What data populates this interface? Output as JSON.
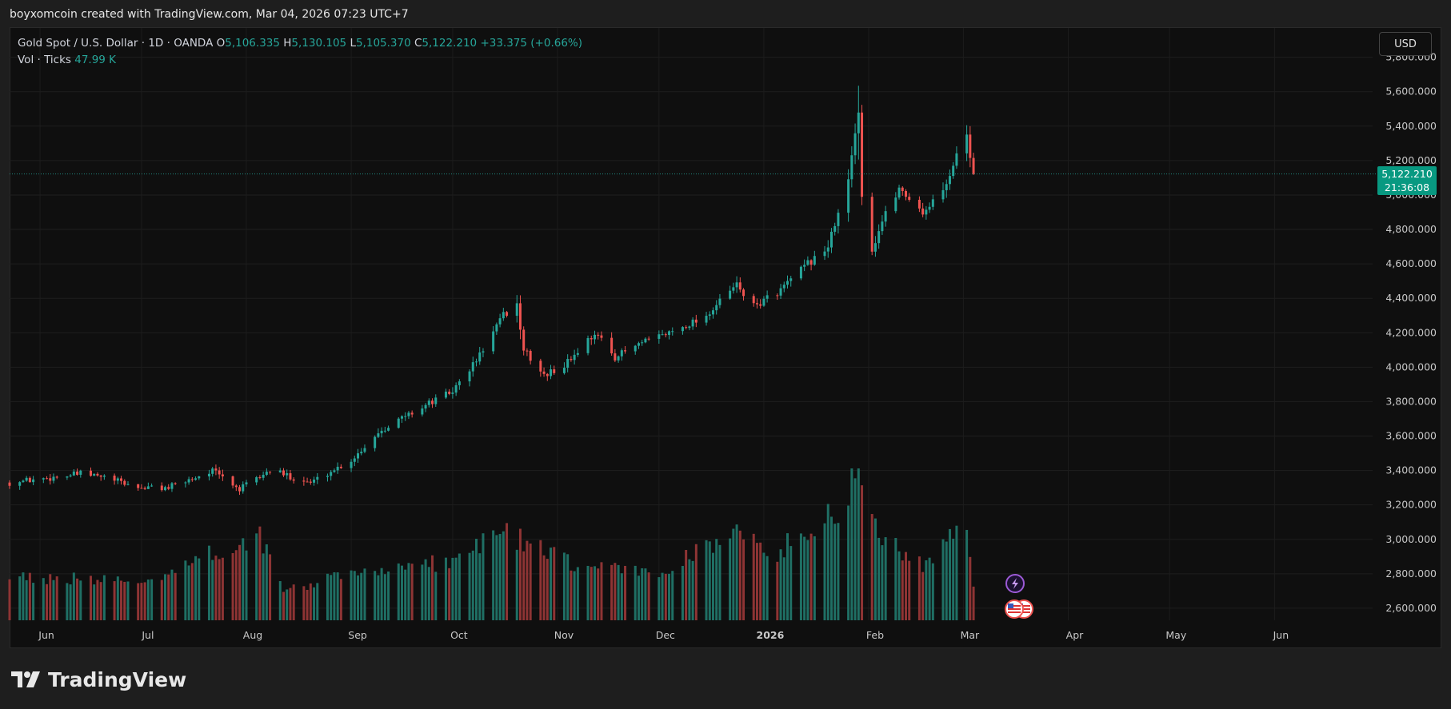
{
  "header": {
    "created_by": "boyxomcoin created with TradingView.com, Mar 04, 2026 07:23 UTC+7"
  },
  "legend": {
    "symbol": "Gold Spot / U.S. Dollar · 1D · OANDA",
    "o_label": "O",
    "o_value": "5,106.335",
    "h_label": "H",
    "h_value": "5,130.105",
    "l_label": "L",
    "l_value": "5,105.370",
    "c_label": "C",
    "c_value": "5,122.210",
    "change": "+33.375 (+0.66%)",
    "vol_label": "Vol · Ticks",
    "vol_value": "47.99 K"
  },
  "currency_button": "USD",
  "price_tag": {
    "price": "5,122.210",
    "countdown": "21:36:08"
  },
  "brand": {
    "name": "TradingView",
    "logo_icon": "tradingview-logo-icon"
  },
  "colors": {
    "up": "#26a69a",
    "down": "#ef5350",
    "vol_up": "#1f6f64",
    "vol_down": "#8e3434",
    "tag": "#089981"
  },
  "icons": [
    "lightning-event-icon",
    "us-flag-event-icon",
    "us-flag-event-icon"
  ],
  "chart_data": {
    "type": "candlestick",
    "title": "",
    "y_axis": {
      "ticks": [
        2600,
        2800,
        3000,
        3200,
        3400,
        3600,
        3800,
        4000,
        4200,
        4400,
        4600,
        4800,
        5000,
        5200,
        5400,
        5600,
        5800
      ],
      "tick_labels": [
        "2,600.000",
        "2,800.000",
        "3,000.000",
        "3,200.000",
        "3,400.000",
        "3,600.000",
        "3,800.000",
        "4,000.000",
        "4,200.000",
        "4,400.000",
        "4,600.000",
        "4,800.000",
        "5,000.000",
        "5,200.000",
        "5,400.000",
        "5,600.000",
        "5,800.000"
      ],
      "range": [
        2530,
        5970
      ],
      "scale": "linear",
      "position": "right"
    },
    "x_axis": {
      "labels": [
        "Jun",
        "Jul",
        "Aug",
        "Sep",
        "Oct",
        "Nov",
        "Dec",
        "2026",
        "Feb",
        "Mar",
        "Apr",
        "May",
        "Jun"
      ],
      "start_date": "2025-05-23",
      "end_date": "2026-06-30"
    },
    "grid": true,
    "last_price": 5122.21,
    "series_points": [
      [
        "2025-05-23",
        3330
      ],
      [
        "2025-06-13",
        3380
      ],
      [
        "2025-06-20",
        3360
      ],
      [
        "2025-06-30",
        3300
      ],
      [
        "2025-07-09",
        3300
      ],
      [
        "2025-07-22",
        3400
      ],
      [
        "2025-07-30",
        3290
      ],
      [
        "2025-08-08",
        3400
      ],
      [
        "2025-08-20",
        3330
      ],
      [
        "2025-09-01",
        3460
      ],
      [
        "2025-09-10",
        3640
      ],
      [
        "2025-09-23",
        3780
      ],
      [
        "2025-10-01",
        3860
      ],
      [
        "2025-10-08",
        4040
      ],
      [
        "2025-10-16",
        4300
      ],
      [
        "2025-10-20",
        4360
      ],
      [
        "2025-10-22",
        4100
      ],
      [
        "2025-10-28",
        3950
      ],
      [
        "2025-11-03",
        4010
      ],
      [
        "2025-11-12",
        4200
      ],
      [
        "2025-11-18",
        4060
      ],
      [
        "2025-11-25",
        4130
      ],
      [
        "2025-12-05",
        4210
      ],
      [
        "2025-12-15",
        4300
      ],
      [
        "2025-12-24",
        4480
      ],
      [
        "2025-12-29",
        4350
      ],
      [
        "2026-01-06",
        4450
      ],
      [
        "2026-01-14",
        4600
      ],
      [
        "2026-01-20",
        4700
      ],
      [
        "2026-01-26",
        5080
      ],
      [
        "2026-01-29",
        5500
      ],
      [
        "2026-01-30",
        5000
      ],
      [
        "2026-02-02",
        4680
      ],
      [
        "2026-02-05",
        4850
      ],
      [
        "2026-02-10",
        5040
      ],
      [
        "2026-02-17",
        4900
      ],
      [
        "2026-02-23",
        5020
      ],
      [
        "2026-02-27",
        5230
      ],
      [
        "2026-03-02",
        5350
      ],
      [
        "2026-03-04",
        5122
      ]
    ],
    "volume": {
      "range": [
        0,
        1
      ],
      "series_points": [
        [
          "2025-05-23",
          0.3
        ],
        [
          "2025-07-01",
          0.26
        ],
        [
          "2025-08-05",
          0.58
        ],
        [
          "2025-08-12",
          0.2
        ],
        [
          "2025-09-05",
          0.34
        ],
        [
          "2025-10-01",
          0.4
        ],
        [
          "2025-10-15",
          0.62
        ],
        [
          "2025-10-22",
          0.54
        ],
        [
          "2025-11-05",
          0.38
        ],
        [
          "2025-12-01",
          0.32
        ],
        [
          "2025-12-22",
          0.6
        ],
        [
          "2026-01-05",
          0.46
        ],
        [
          "2026-01-23",
          0.78
        ],
        [
          "2026-01-29",
          1.0
        ],
        [
          "2026-02-04",
          0.6
        ],
        [
          "2026-02-18",
          0.36
        ],
        [
          "2026-03-02",
          0.7
        ],
        [
          "2026-03-04",
          0.2
        ]
      ]
    }
  }
}
